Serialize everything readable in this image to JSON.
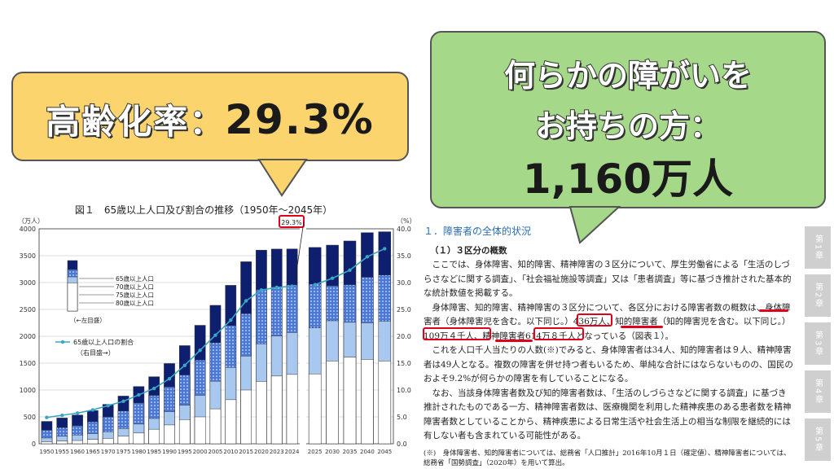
{
  "callout_left": {
    "label": "高齢化率：",
    "value": "29.3%",
    "fill": "#fbd46d"
  },
  "callout_right": {
    "line1": "何らかの障がいを",
    "line2": "お持ちの方：",
    "line3": "1,160万人",
    "fill": "#a6d88a"
  },
  "chart_data": {
    "type": "bar",
    "title": "図１　65歳以上人口及び割合の推移（1950年～2045年）",
    "y_left_unit": "（万人）",
    "y_right_unit": "（%）",
    "y_left_ticks": [
      "0",
      "500",
      "1000",
      "1500",
      "2000",
      "2500",
      "3000",
      "3500",
      "4000"
    ],
    "y_right_ticks": [
      "0.0",
      "5.0",
      "10.0",
      "15.0",
      "20.0",
      "25.0",
      "30.0",
      "35.0",
      "40.0"
    ],
    "ylim": [
      0,
      4000
    ],
    "ylim_right": [
      0,
      40
    ],
    "x": [
      "1950",
      "1955",
      "1960",
      "1965",
      "1970",
      "1975",
      "1980",
      "1985",
      "1990",
      "1995",
      "2000",
      "2005",
      "2010",
      "2015",
      "2020",
      "2023",
      "2024",
      "2025",
      "2030",
      "2035",
      "2040",
      "2045"
    ],
    "series": [
      {
        "name": "65歳以上人口",
        "values": [
          416,
          479,
          535,
          618,
          733,
          887,
          1065,
          1247,
          1493,
          1826,
          2204,
          2576,
          2948,
          3387,
          3603,
          3623,
          3625,
          3653,
          3696,
          3773,
          3928,
          3945
        ],
        "color": "#0d1f6e"
      },
      {
        "name": "70歳以上人口",
        "values": [
          253,
          300,
          338,
          410,
          500,
          610,
          760,
          900,
          1060,
          1280,
          1560,
          1880,
          2200,
          2420,
          2870,
          2920,
          2955,
          2970,
          2940,
          2960,
          3100,
          3140
        ],
        "color": "#4a78d8"
      },
      {
        "name": "75歳以上人口",
        "values": [
          107,
          140,
          163,
          189,
          224,
          284,
          366,
          470,
          597,
          717,
          901,
          1164,
          1419,
          1632,
          1860,
          2005,
          2070,
          2155,
          2288,
          2260,
          2250,
          2280
        ],
        "color": "#a9c8f0"
      },
      {
        "name": "80歳以上人口",
        "values": [
          37,
          50,
          60,
          80,
          100,
          140,
          200,
          270,
          350,
          450,
          500,
          650,
          820,
          1000,
          1160,
          1260,
          1290,
          1300,
          1540,
          1610,
          1570,
          1540
        ],
        "color": "#ffffff"
      }
    ],
    "line": {
      "name": "65歳以上人口の割合",
      "note": "（右目盛→）",
      "values": [
        4.9,
        5.3,
        5.7,
        6.3,
        7.1,
        7.9,
        9.1,
        10.3,
        12.1,
        14.6,
        17.4,
        20.2,
        23.0,
        26.6,
        28.6,
        29.1,
        29.3,
        29.6,
        30.8,
        32.3,
        34.8,
        36.3
      ],
      "color": "#3aa6c6"
    },
    "left_scale_note": "（←左目盛）",
    "highlight_label": "29.3%"
  },
  "document": {
    "section": "１．障害者の全体的状況",
    "subsection": "（１）３区分の概数",
    "paragraphs": [
      "ここでは、身体障害、知的障害、精神障害の３区分について、厚生労働省による「生活のしづらさなどに関する調査」、「社会福祉施設等調査」又は「患者調査」等に基づき推計された基本的な統計数値を掲載する。",
      "身体障害、知的障害、精神障害の３区分について、各区分における障害者数の概数は、身体障害者（身体障害児を含む。以下同じ。）436万人、知的障害者（知的障害児を含む。以下同じ。）109万４千人、精神障害者614万８千人となっている（図表１）。",
      "これを人口千人当たりの人数(※)でみると、身体障害者は34人、知的障害者は９人、精神障害者は49人となる。複数の障害を併せ持つ者もいるため、単純な合計にはならないものの、国民のおよそ9.2%が何らかの障害を有していることになる。",
      "なお、当該身体障害者数及び知的障害者数は、「生活のしづらさなどに関する調査」に基づき推計されたものである一方、精神障害者数は、医療機関を利用した精神疾患のある患者数を精神障害者数としていることから、精神疾患による日常生活や社会生活上の相当な制限を継続的には有しない者も含まれている可能性がある。"
    ],
    "note": "(※)　身体障害者、知的障害者については、総務省「人口推計」2016年10月１日（確定値）、精神障害者については、総務省「国勢調査」（2020年）を用いて算出。"
  },
  "tabs": [
    "第1章",
    "第2章",
    "第3章",
    "第4章",
    "第5章"
  ],
  "highlight_color": "#e0001b"
}
